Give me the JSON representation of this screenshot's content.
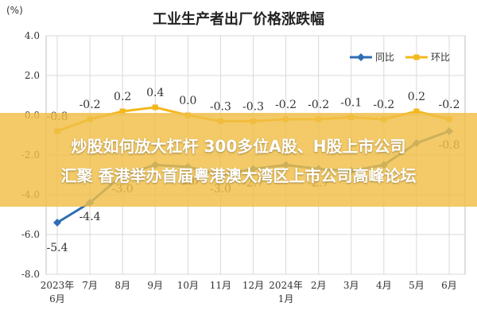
{
  "title": "工业生产者出厂价格涨跌幅",
  "unit_label": "(%)",
  "banner": {
    "line1": "炒股如何放大杠杆 300多位A股、H股上市公司",
    "line2": "汇聚 香港举办首届粤港澳大湾区上市公司高峰论坛"
  },
  "colors": {
    "yoy": "#2f6db5",
    "mom": "#f3b81c",
    "banner": "#f0be46",
    "grid": "#d9d9d9",
    "axis_text": "#333333"
  },
  "chart_data": {
    "type": "line",
    "title": "工业生产者出厂价格涨跌幅",
    "ylabel": "(%)",
    "ylim": [
      -8.0,
      4.0
    ],
    "yticks": [
      "4.0",
      "2.0",
      "0.0",
      "-2.0",
      "-4.0",
      "-6.0",
      "-8.0"
    ],
    "ytick_values": [
      4.0,
      2.0,
      0.0,
      -2.0,
      -4.0,
      -6.0,
      -8.0
    ],
    "categories": [
      "2023年\n6月",
      "7月",
      "8月",
      "9月",
      "10月",
      "11月",
      "12月",
      "2024年\n1月",
      "2月",
      "3月",
      "4月",
      "5月",
      "6月"
    ],
    "grid": true,
    "legend_position": "top-right",
    "series": [
      {
        "name": "同比",
        "color": "#2f6db5",
        "marker": "diamond",
        "values": [
          -5.4,
          -4.4,
          -3.0,
          -2.5,
          -2.6,
          -3.0,
          -2.7,
          -2.5,
          -2.7,
          -2.8,
          -2.5,
          -1.4,
          -0.8
        ],
        "labels": [
          "-5.4",
          "-4.4",
          "-3.0",
          "",
          "-2.6",
          "-3.0",
          "-2.7",
          "",
          "-2.7",
          "",
          "",
          "",
          "-0.8"
        ]
      },
      {
        "name": "环比",
        "color": "#f3b81c",
        "marker": "square",
        "values": [
          -0.8,
          -0.2,
          0.2,
          0.4,
          0.0,
          -0.3,
          -0.3,
          -0.2,
          -0.2,
          -0.1,
          -0.2,
          0.2,
          -0.2
        ],
        "labels": [
          "-0.8",
          "-0.2",
          "0.2",
          "0.4",
          "0.0",
          "-0.3",
          "-0.3",
          "-0.2",
          "-0.2",
          "-0.1",
          "-0.2",
          "0.2",
          "-0.2"
        ]
      }
    ]
  }
}
